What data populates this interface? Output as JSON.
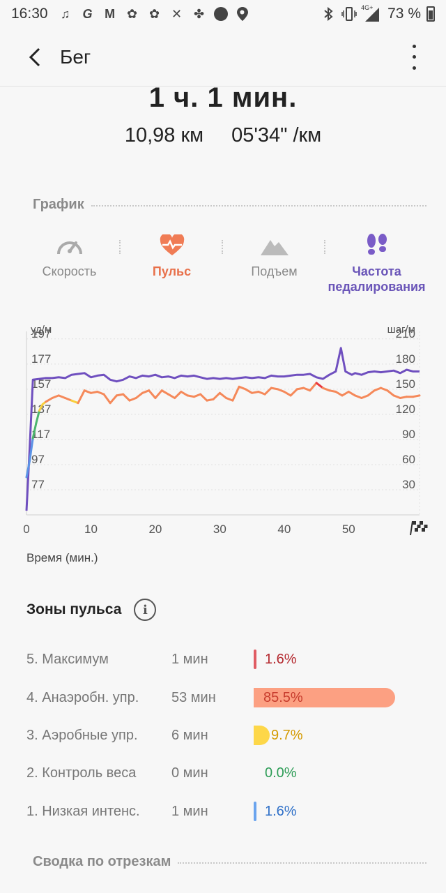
{
  "status": {
    "time": "16:30",
    "battery": "73 %",
    "network": "4G+"
  },
  "appbar": {
    "title": "Бег"
  },
  "summary": {
    "duration": "1 ч. 1 мин.",
    "distance": "10,98 км",
    "pace": "05'34\" /км"
  },
  "graph_section": {
    "label": "График"
  },
  "tabs": [
    {
      "label": "Скорость",
      "icon": "speedometer-icon"
    },
    {
      "label": "Пульс",
      "icon": "heart-rate-icon"
    },
    {
      "label": "Подъем",
      "icon": "mountain-icon"
    },
    {
      "label": "Частота педалирования",
      "icon": "footsteps-icon"
    }
  ],
  "chart_data": {
    "type": "line",
    "left_axis_unit": "уд/м",
    "right_axis_unit": "шаг/м",
    "left_ticks": [
      197,
      177,
      157,
      137,
      117,
      97,
      77
    ],
    "right_ticks": [
      210,
      180,
      150,
      120,
      90,
      60,
      30
    ],
    "x_ticks": [
      0,
      10,
      20,
      30,
      40,
      50
    ],
    "xlabel": "Время (мин.)",
    "xlim": [
      0,
      61
    ],
    "left_ylim": [
      57,
      203
    ],
    "right_ylim": [
      0,
      220
    ],
    "series": [
      {
        "axis": "left",
        "color_segments": "zone",
        "x": [
          0,
          0.5,
          1,
          1.5,
          2,
          2.5,
          3,
          4,
          5,
          6,
          7,
          8,
          9,
          10,
          11,
          12,
          13,
          14,
          15,
          16,
          17,
          18,
          19,
          20,
          21,
          22,
          23,
          24,
          25,
          26,
          27,
          28,
          29,
          30,
          31,
          32,
          33,
          34,
          35,
          36,
          37,
          38,
          39,
          40,
          41,
          42,
          43,
          44,
          45,
          46,
          47,
          48,
          49,
          50,
          51,
          52,
          53,
          54,
          55,
          56,
          57,
          58,
          59,
          60,
          61
        ],
        "values": [
          87,
          100,
          118,
          130,
          140,
          145,
          147,
          150,
          152,
          150,
          148,
          146,
          156,
          154,
          155,
          153,
          146,
          152,
          153,
          148,
          150,
          154,
          156,
          150,
          156,
          153,
          150,
          155,
          152,
          151,
          153,
          148,
          149,
          154,
          150,
          148,
          159,
          157,
          154,
          155,
          153,
          158,
          157,
          155,
          152,
          157,
          158,
          156,
          162,
          158,
          156,
          155,
          152,
          155,
          152,
          150,
          152,
          156,
          158,
          156,
          152,
          150,
          151,
          151,
          152
        ]
      },
      {
        "axis": "right",
        "color": "#6f4fbf",
        "x": [
          0,
          0.5,
          1,
          2,
          3,
          4,
          5,
          6,
          7,
          8,
          9,
          10,
          11,
          12,
          13,
          14,
          15,
          16,
          17,
          18,
          19,
          20,
          21,
          22,
          23,
          24,
          25,
          26,
          27,
          28,
          29,
          30,
          31,
          32,
          33,
          34,
          35,
          36,
          37,
          38,
          39,
          40,
          41,
          42,
          43,
          44,
          45,
          46,
          47,
          48,
          48.8,
          49.5,
          50.5,
          51,
          52,
          53,
          54,
          55,
          56,
          57,
          58,
          59,
          60,
          61
        ],
        "values": [
          5,
          80,
          162,
          163,
          164,
          164,
          165,
          164,
          168,
          169,
          170,
          165,
          167,
          168,
          162,
          160,
          162,
          166,
          164,
          167,
          166,
          168,
          165,
          166,
          164,
          167,
          166,
          167,
          165,
          163,
          164,
          163,
          164,
          163,
          164,
          165,
          164,
          165,
          164,
          167,
          166,
          166,
          167,
          168,
          168,
          169,
          165,
          163,
          168,
          172,
          200,
          172,
          168,
          170,
          168,
          171,
          172,
          171,
          172,
          173,
          170,
          174,
          172,
          172
        ]
      }
    ]
  },
  "zones": {
    "title": "Зоны пульса",
    "items": [
      {
        "name": "5. Максимум",
        "duration": "1 мин",
        "percent": "1.6%",
        "fraction": 0.016,
        "bar_color": "#e05c63",
        "text_color": "#b4282e"
      },
      {
        "name": "4. Анаэробн. упр.",
        "duration": "53 мин",
        "percent": "85.5%",
        "fraction": 0.855,
        "bar_color": "#fca082",
        "text_color": "#c73c2d"
      },
      {
        "name": "3. Аэробные упр.",
        "duration": "6 мин",
        "percent": "9.7%",
        "fraction": 0.097,
        "bar_color": "#fdd749",
        "text_color": "#d49a00"
      },
      {
        "name": "2. Контроль веса",
        "duration": "0 мин",
        "percent": "0.0%",
        "fraction": 0.0,
        "bar_color": "#4cb56e",
        "text_color": "#2e9d57"
      },
      {
        "name": "1. Низкая интенс.",
        "duration": "1 мин",
        "percent": "1.6%",
        "fraction": 0.016,
        "bar_color": "#6aa4ee",
        "text_color": "#2f70c8"
      }
    ]
  },
  "splits_section": {
    "label": "Сводка по отрезкам"
  }
}
